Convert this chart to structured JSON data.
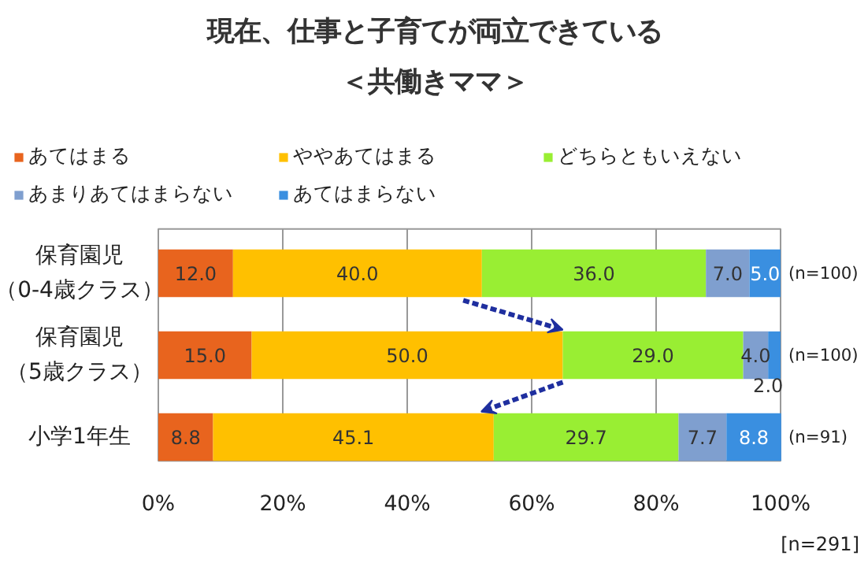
{
  "chart_data": {
    "type": "bar",
    "orientation": "horizontal",
    "stacked": true,
    "title": "現在、仕事と子育てが両立できている",
    "subtitle": "＜共働きママ＞",
    "categories": [
      "保育園児（0-4歳クラス）",
      "保育園児（5歳クラス）",
      "小学1年生"
    ],
    "series": [
      {
        "name": "あてはまる",
        "color": "#e8641e",
        "values": [
          12.0,
          15.0,
          8.8
        ],
        "value_labels": [
          "12.0",
          "15.0",
          "8.8"
        ]
      },
      {
        "name": "ややあてはまる",
        "color": "#ffc000",
        "values": [
          40.0,
          50.0,
          45.1
        ],
        "value_labels": [
          "40.0",
          "50.0",
          "45.1"
        ]
      },
      {
        "name": "どちらともいえない",
        "color": "#99ee33",
        "values": [
          36.0,
          29.0,
          29.7
        ],
        "value_labels": [
          "36.0",
          "29.0",
          "29.7"
        ]
      },
      {
        "name": "あまりあてはまらない",
        "color": "#7f9fcf",
        "values": [
          7.0,
          4.0,
          7.7
        ],
        "value_labels": [
          "7.0",
          "4.0",
          "7.7"
        ]
      },
      {
        "name": "あてはまらない",
        "color": "#3a8fe0",
        "values": [
          5.0,
          2.0,
          8.8
        ],
        "value_labels": [
          "5.0",
          "2.0",
          "8.8"
        ]
      }
    ],
    "xlim": [
      0,
      100
    ],
    "xticks": [
      {
        "value": 0,
        "label": "0%"
      },
      {
        "value": 20,
        "label": "20%"
      },
      {
        "value": 40,
        "label": "40%"
      },
      {
        "value": 60,
        "label": "60%"
      },
      {
        "value": 80,
        "label": "80%"
      },
      {
        "value": 100,
        "label": "100%"
      }
    ],
    "grid": "x",
    "legend": "top",
    "annotations": [
      "(n=100)",
      "(n=100)",
      "(n=91)",
      "[n=291]"
    ]
  }
}
